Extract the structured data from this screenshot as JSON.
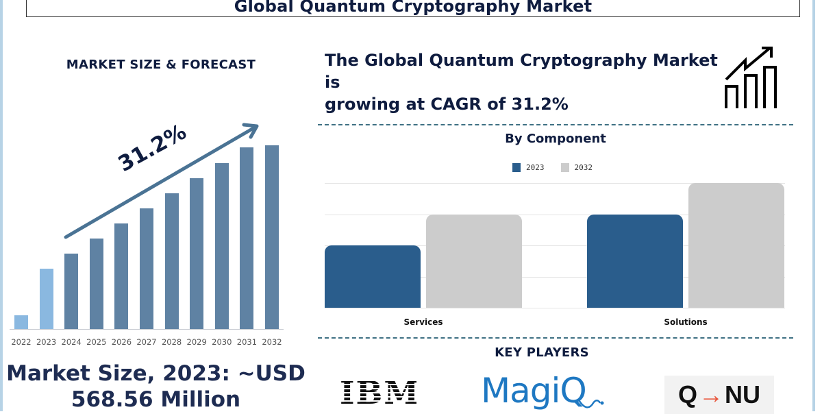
{
  "header": {
    "title": "Global Quantum Cryptography Market"
  },
  "left_panel": {
    "heading": "MARKET SIZE & FORECAST",
    "cagr_label": "31.2%",
    "market_size_line1": "Market Size, 2023: ~USD",
    "market_size_line2": "568.56 Million"
  },
  "right_panel": {
    "cagr_heading_line1": "The Global Quantum Cryptography Market is",
    "cagr_heading_line2": "growing at CAGR of 31.2%",
    "icon": "growth-chart-icon",
    "component_title": "By Component",
    "legend": [
      {
        "label": "2023",
        "color": "#2a5d8c"
      },
      {
        "label": "2032",
        "color": "#cccccc"
      }
    ],
    "key_players_title": "KEY PLAYERS",
    "key_players": [
      "IBM",
      "MagiQ",
      "QNU"
    ],
    "qnu_parts": {
      "left": "Q",
      "arrow": "→",
      "right": "NU"
    }
  },
  "colors": {
    "title_navy": "#0f1c3f",
    "bar_historic": "#8ab8e0",
    "bar_forecast": "#5f82a3",
    "arrow": "#4a7394",
    "bar_2023": "#2a5d8c",
    "bar_2032": "#cccccc",
    "dashed_divider": "#3e7083",
    "frame": "#b7d3e6",
    "magiq_blue": "#1e78c2",
    "qnu_arrow": "#e8543a"
  },
  "chart_data": [
    {
      "type": "bar",
      "title": "MARKET SIZE & FORECAST",
      "categories": [
        "2022",
        "2023",
        "2024",
        "2025",
        "2026",
        "2027",
        "2028",
        "2029",
        "2030",
        "2031",
        "2032"
      ],
      "values": [
        20,
        88,
        110,
        132,
        154,
        176,
        198,
        220,
        242,
        265,
        268
      ],
      "value_units": "relative bar height (px, unlabeled axis)",
      "series_styles": {
        "historic": [
          "2022",
          "2023"
        ],
        "forecast": [
          "2024",
          "2025",
          "2026",
          "2027",
          "2028",
          "2029",
          "2030",
          "2031",
          "2032"
        ]
      },
      "annotation": "31.2% (CAGR arrow)",
      "xlabel": "",
      "ylabel": "",
      "grid": false
    },
    {
      "type": "bar",
      "title": "By Component",
      "categories": [
        "Services",
        "Solutions"
      ],
      "series": [
        {
          "name": "2023",
          "values": [
            2,
            3
          ]
        },
        {
          "name": "2032",
          "values": [
            3,
            4
          ]
        }
      ],
      "value_units": "gridline units (unlabeled axis)",
      "ylim": [
        0,
        4
      ],
      "grid": true,
      "legend_position": "top"
    }
  ]
}
